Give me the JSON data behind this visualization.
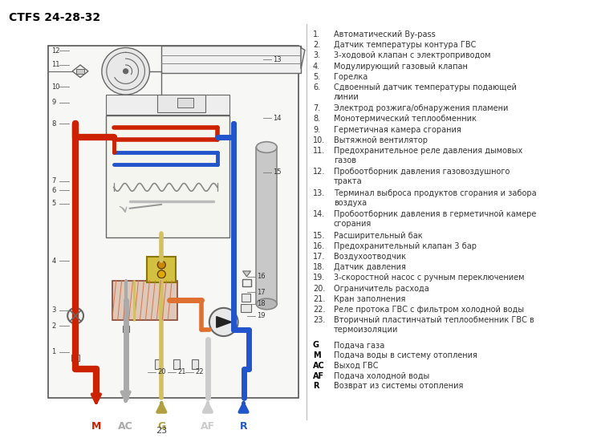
{
  "title": "CTFS 24-28-32",
  "bg_color": "#ffffff",
  "legend_items": [
    [
      "1.",
      "Автоматический By-pass"
    ],
    [
      "2.",
      "Датчик температуры контура ГВС"
    ],
    [
      "3.",
      "3-ходовой клапан с электроприводом"
    ],
    [
      "4.",
      "Модулирующий газовый клапан"
    ],
    [
      "5.",
      "Горелка"
    ],
    [
      "6.",
      "Сдвоенный датчик температуры подающей\nлинии"
    ],
    [
      "7.",
      "Электрод розжига/обнаружения пламени"
    ],
    [
      "8.",
      "Монотермический теплообменник"
    ],
    [
      "9.",
      "Герметичная камера сгорания"
    ],
    [
      "10.",
      "Вытяжной вентилятор"
    ],
    [
      "11.",
      "Предохранительное реле давления дымовых\nгазов"
    ],
    [
      "12.",
      "Пробоотборник давления газовоздушного\nтракта"
    ],
    [
      "13.",
      "Терминал выброса продуктов сгорания и забора\nвоздуха"
    ],
    [
      "14.",
      "Пробоотборник давления в герметичной камере\nсгорания"
    ],
    [
      "15.",
      "Расширительный бак"
    ],
    [
      "16.",
      "Предохранительный клапан 3 бар"
    ],
    [
      "17.",
      "Воздухоотводчик"
    ],
    [
      "18.",
      "Датчик давления"
    ],
    [
      "19.",
      "3-скоростной насос с ручным переключением"
    ],
    [
      "20.",
      "Ограничитель расхода"
    ],
    [
      "21.",
      "Кран заполнения"
    ],
    [
      "22.",
      "Реле протока ГВС с фильтром холодной воды"
    ],
    [
      "23.",
      "Вторичный пластинчатый теплообменник ГВС в\nтермоизоляции"
    ]
  ],
  "abbrev_items": [
    [
      "G",
      "Подача газа"
    ],
    [
      "M",
      "Подача воды в систему отопления"
    ],
    [
      "AC",
      "Выход ГВС"
    ],
    [
      "AF",
      "Подача холодной воды"
    ],
    [
      "R",
      "Возврат из системы отопления"
    ]
  ],
  "red": "#cc2200",
  "blue": "#2255cc",
  "yellow": "#d4c060",
  "orange": "#e07030",
  "gray": "#aaaaaa",
  "darkgray": "#666666",
  "lightgray": "#cccccc",
  "dark": "#222222"
}
